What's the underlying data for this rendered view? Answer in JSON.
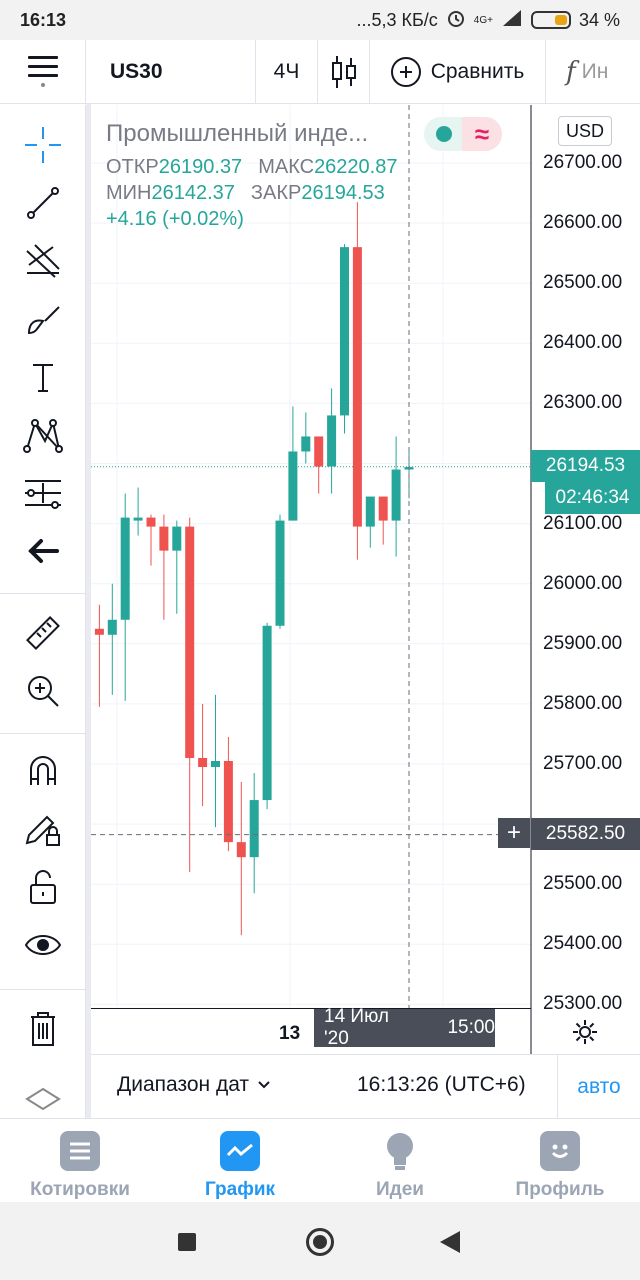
{
  "status_bar": {
    "time": "16:13",
    "net_speed": "...5,3 КБ/с",
    "network": "4G+",
    "battery": "34 %"
  },
  "toolbar": {
    "symbol": "US30",
    "interval": "4Ч",
    "compare_label": "Сравнить",
    "indicators_label": "Ин"
  },
  "legend": {
    "title": "Промышленный инде...",
    "open_label": "ОТКР",
    "open": "26190.37",
    "high_label": "МАКС",
    "high": "26220.87",
    "low_label": "МИН",
    "low": "26142.37",
    "close_label": "ЗАКР",
    "close": "26194.53",
    "change": "+4.16 (+0.02%)"
  },
  "price_axis": {
    "currency": "USD",
    "ticks": [
      "26700.00",
      "26600.00",
      "26500.00",
      "26400.00",
      "26300.00",
      "26194.53",
      "26100.00",
      "26000.00",
      "25900.00",
      "25800.00",
      "25700.00",
      "25582.50",
      "25500.00",
      "25400.00",
      "25300.00"
    ],
    "last_price": "26194.53",
    "countdown": "02:46:34",
    "crosshair_price": "25582.50"
  },
  "time_axis": {
    "day_label": "13",
    "crosshair_date": "14 Июл '20",
    "crosshair_time": "15:00"
  },
  "bottom_controls": {
    "date_range": "Диапазон дат",
    "clock": "16:13:26 (UTC+6)",
    "auto": "авто"
  },
  "tabs": [
    {
      "label": "Котировки",
      "icon": "quotes-icon"
    },
    {
      "label": "График",
      "icon": "chart-icon",
      "active": true
    },
    {
      "label": "Идеи",
      "icon": "ideas-icon"
    },
    {
      "label": "Профиль",
      "icon": "profile-icon"
    }
  ],
  "colors": {
    "up": "#26a69a",
    "down": "#ef5350",
    "accent": "#2196f3",
    "crosshair_tag": "#4a4e59"
  },
  "chart_data": {
    "type": "candlestick",
    "symbol": "US30",
    "interval": "4Ч",
    "y_range": [
      25300,
      26700
    ],
    "candles": [
      {
        "o": 25925,
        "h": 25965,
        "l": 25795,
        "c": 25915
      },
      {
        "o": 25915,
        "h": 26000,
        "l": 25815,
        "c": 25940
      },
      {
        "o": 25940,
        "h": 26150,
        "l": 25805,
        "c": 26110
      },
      {
        "o": 26105,
        "h": 26160,
        "l": 26080,
        "c": 26110
      },
      {
        "o": 26110,
        "h": 26115,
        "l": 26030,
        "c": 26095
      },
      {
        "o": 26095,
        "h": 26115,
        "l": 25940,
        "c": 26055
      },
      {
        "o": 26055,
        "h": 26105,
        "l": 25950,
        "c": 26095
      },
      {
        "o": 26095,
        "h": 26110,
        "l": 25520,
        "c": 25710
      },
      {
        "o": 25710,
        "h": 25800,
        "l": 25630,
        "c": 25695
      },
      {
        "o": 25695,
        "h": 25815,
        "l": 25595,
        "c": 25705
      },
      {
        "o": 25705,
        "h": 25745,
        "l": 25555,
        "c": 25570
      },
      {
        "o": 25570,
        "h": 25670,
        "l": 25415,
        "c": 25545
      },
      {
        "o": 25545,
        "h": 25685,
        "l": 25485,
        "c": 25640
      },
      {
        "o": 25640,
        "h": 25935,
        "l": 25625,
        "c": 25930
      },
      {
        "o": 25930,
        "h": 26115,
        "l": 25925,
        "c": 26105
      },
      {
        "o": 26105,
        "h": 26295,
        "l": 26105,
        "c": 26220
      },
      {
        "o": 26220,
        "h": 26285,
        "l": 26200,
        "c": 26245
      },
      {
        "o": 26245,
        "h": 26245,
        "l": 26150,
        "c": 26195
      },
      {
        "o": 26195,
        "h": 26325,
        "l": 26150,
        "c": 26280
      },
      {
        "o": 26280,
        "h": 26565,
        "l": 26250,
        "c": 26560
      },
      {
        "o": 26560,
        "h": 26635,
        "l": 26040,
        "c": 26095
      },
      {
        "o": 26095,
        "h": 26135,
        "l": 26060,
        "c": 26145
      },
      {
        "o": 26145,
        "h": 26145,
        "l": 26065,
        "c": 26105
      },
      {
        "o": 26105,
        "h": 26245,
        "l": 26045,
        "c": 26190
      },
      {
        "o": 26190,
        "h": 26220,
        "l": 26142,
        "c": 26194
      }
    ]
  }
}
